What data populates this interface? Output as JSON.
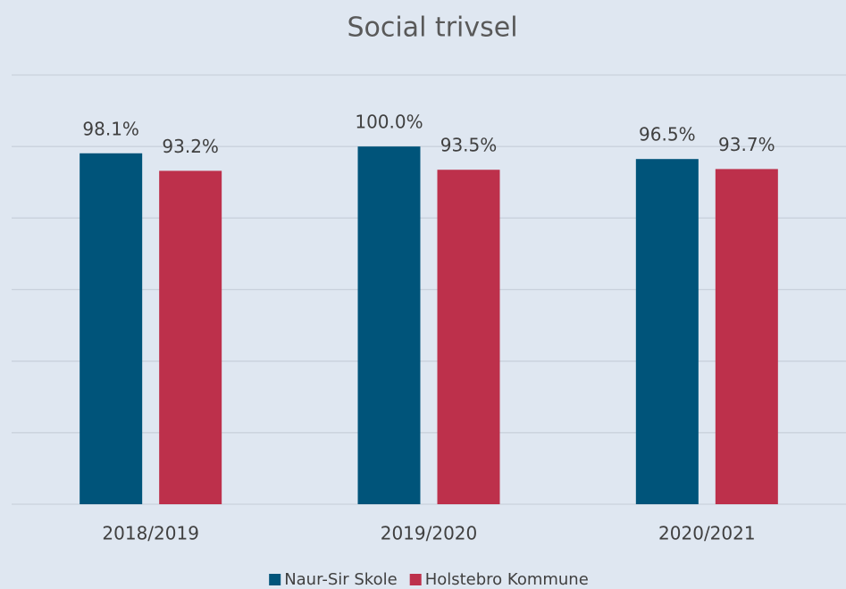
{
  "chart_data": {
    "type": "bar",
    "title": "Social trivsel",
    "categories": [
      "2018/2019",
      "2019/2020",
      "2020/2021"
    ],
    "series": [
      {
        "name": "Naur-Sir Skole",
        "color": "#00547a",
        "values": [
          98.1,
          100.0,
          96.5
        ],
        "value_labels": [
          "98.1%",
          "100.0%",
          "96.5%"
        ]
      },
      {
        "name": "Holstebro Kommune",
        "color": "#bd304b",
        "values": [
          93.2,
          93.5,
          93.7
        ],
        "value_labels": [
          "93.2%",
          "93.5%",
          "93.7%"
        ]
      }
    ],
    "ylim": [
      0,
      120
    ],
    "yticks": [
      0,
      20,
      40,
      60,
      80,
      100,
      120
    ],
    "grid": true,
    "legend": "bottom"
  }
}
